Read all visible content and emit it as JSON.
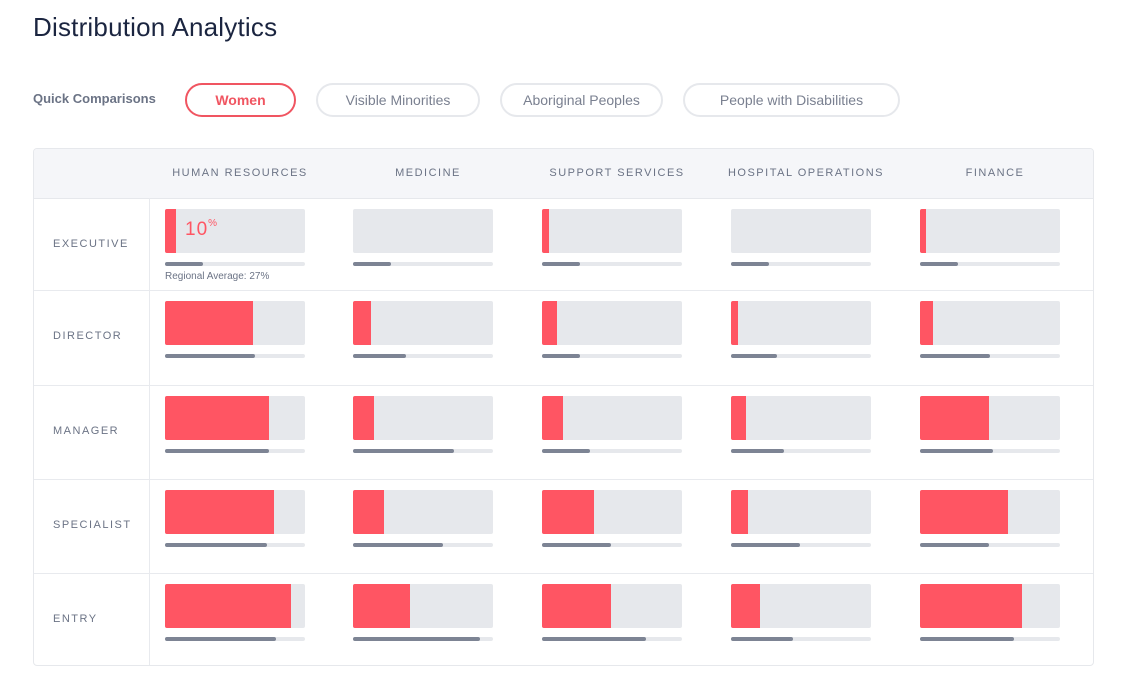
{
  "title": "Distribution Analytics",
  "quick_comparisons": {
    "label": "Quick Comparisons",
    "options": [
      "Women",
      "Visible Minorities",
      "Aboriginal Peoples",
      "People with Disabilities"
    ],
    "active": "Women"
  },
  "colors": {
    "accent": "#ff5563",
    "bar_track": "#e6e8ec",
    "average_bar": "#7d8494"
  },
  "columns": [
    "HUMAN RESOURCES",
    "MEDICINE",
    "SUPPORT SERVICES",
    "HOSPITAL OPERATIONS",
    "FINANCE"
  ],
  "rows": [
    {
      "label": "EXECUTIVE",
      "values": [
        0.08,
        0.0,
        0.05,
        0.0,
        0.04
      ],
      "averages": [
        0.27,
        0.27,
        0.27,
        0.27,
        0.27
      ]
    },
    {
      "label": "DIRECTOR",
      "values": [
        0.63,
        0.13,
        0.11,
        0.05,
        0.09
      ],
      "averages": [
        0.64,
        0.38,
        0.27,
        0.33,
        0.5
      ]
    },
    {
      "label": "MANAGER",
      "values": [
        0.74,
        0.15,
        0.15,
        0.11,
        0.49
      ],
      "averages": [
        0.74,
        0.72,
        0.34,
        0.38,
        0.52
      ]
    },
    {
      "label": "SPECIALIST",
      "values": [
        0.78,
        0.22,
        0.37,
        0.12,
        0.63
      ],
      "averages": [
        0.73,
        0.64,
        0.49,
        0.49,
        0.49
      ]
    },
    {
      "label": "ENTRY",
      "values": [
        0.9,
        0.41,
        0.49,
        0.21,
        0.73
      ],
      "averages": [
        0.79,
        0.91,
        0.74,
        0.44,
        0.67
      ]
    }
  ],
  "highlight": {
    "value": "10",
    "unit": "%",
    "caption": "Regional Average: 27%"
  }
}
